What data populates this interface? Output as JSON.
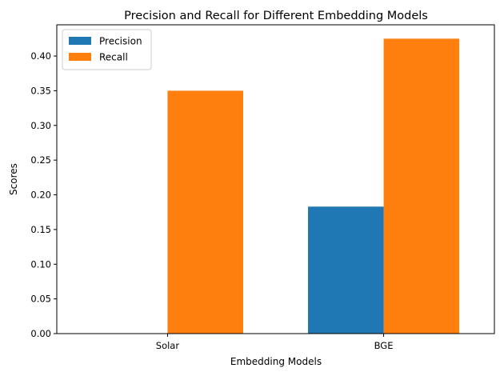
{
  "chart_data": {
    "type": "bar",
    "title": "Precision and Recall for Different Embedding Models",
    "xlabel": "Embedding Models",
    "ylabel": "Scores",
    "categories": [
      "Solar",
      "BGE"
    ],
    "series": [
      {
        "name": "Precision",
        "values": [
          0.0,
          0.183
        ],
        "color": "#1f77b4"
      },
      {
        "name": "Recall",
        "values": [
          0.35,
          0.425
        ],
        "color": "#ff7f0e"
      }
    ],
    "ylim": [
      0,
      0.445
    ],
    "yticks": [
      "0.00",
      "0.05",
      "0.10",
      "0.15",
      "0.20",
      "0.25",
      "0.30",
      "0.35",
      "0.40"
    ],
    "grid": false,
    "legend": "top-left"
  }
}
